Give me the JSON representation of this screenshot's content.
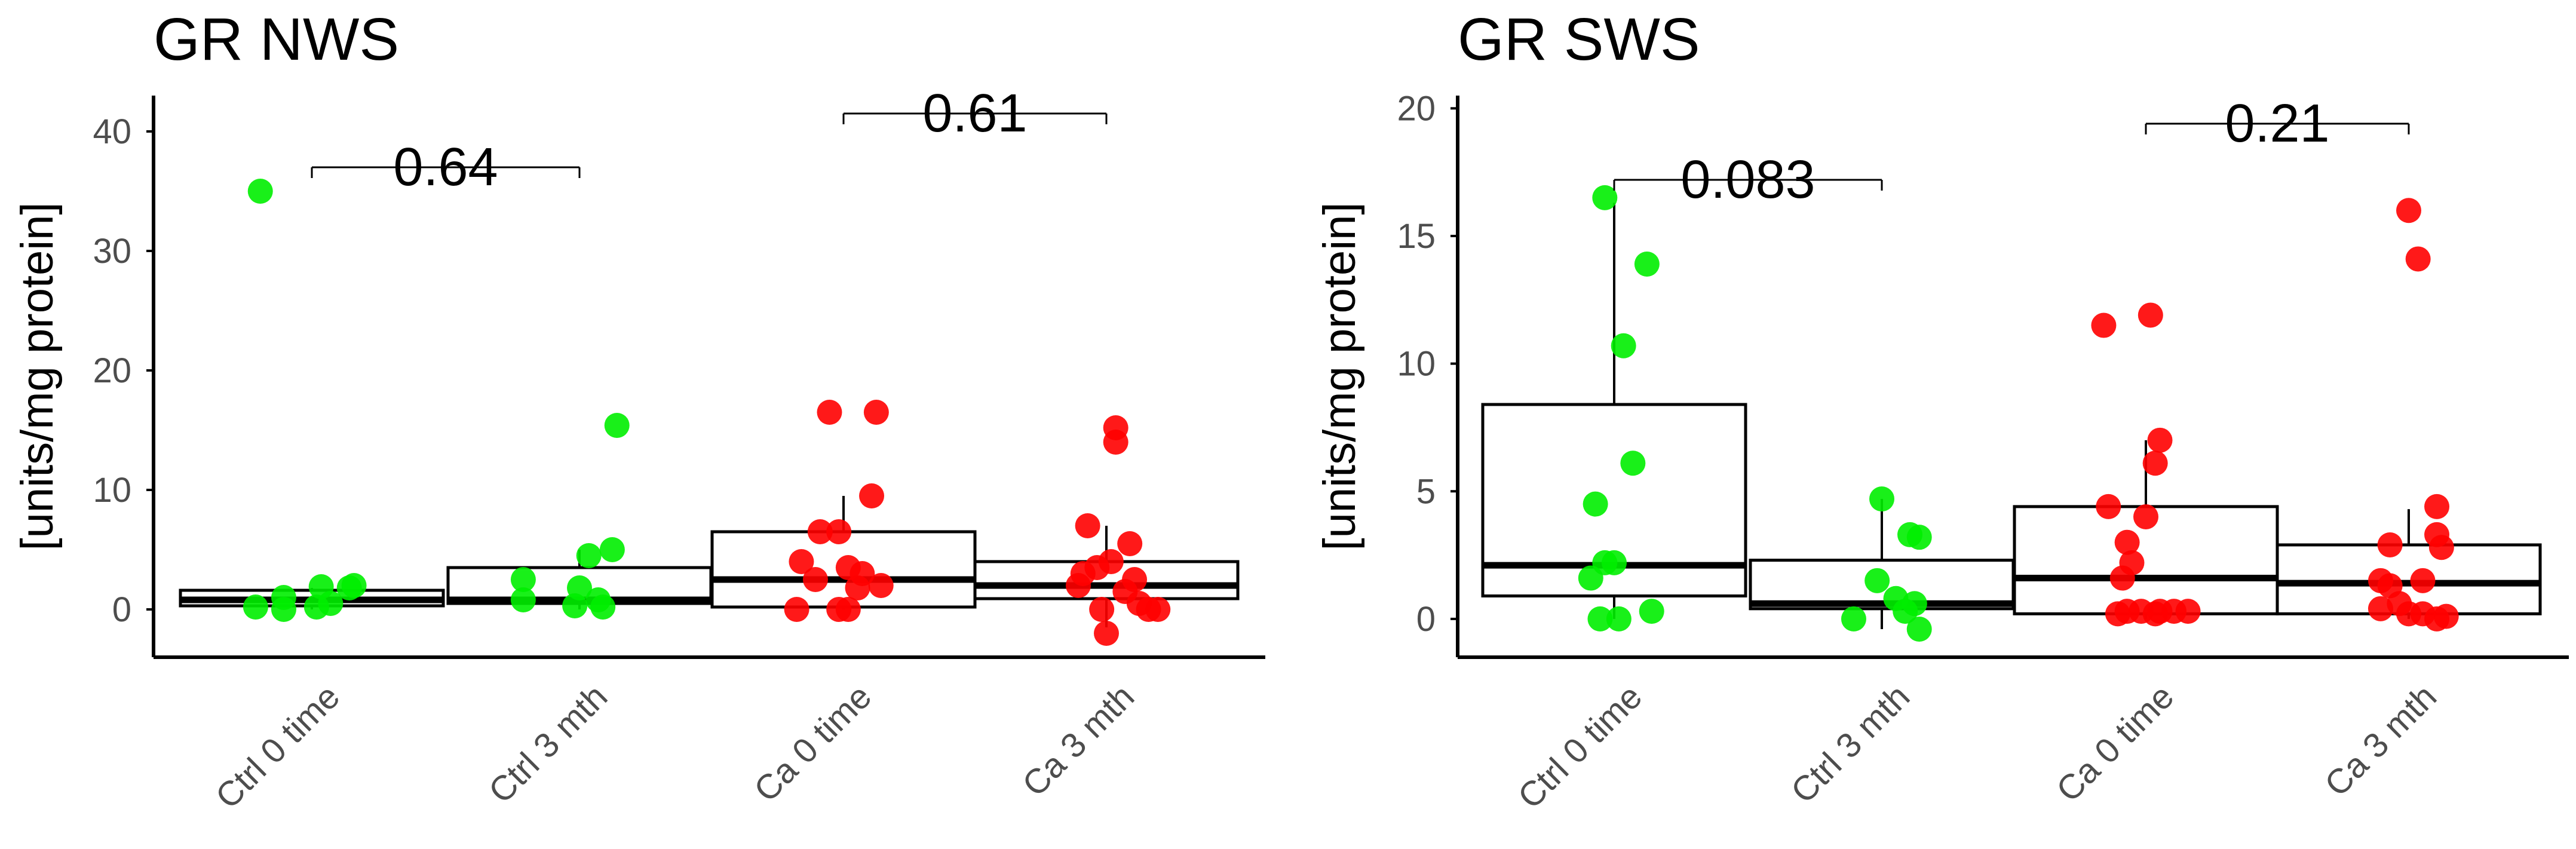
{
  "colors": {
    "ctrl": "#00ee00",
    "ca": "#ff0000",
    "axis": "#000000",
    "tick_text": "#4d4d4d"
  },
  "chart_data": [
    {
      "type": "box",
      "title": "GR NWS",
      "xlabel": "",
      "ylabel": "[units/mg protein]",
      "ylim": [
        -4,
        43
      ],
      "yticks": [
        0,
        10,
        20,
        30,
        40
      ],
      "grid": false,
      "categories": [
        "Ctrl 0 time",
        "Ctrl 3 mth",
        "Ca 0 time",
        "Ca 3 mth"
      ],
      "boxes": [
        {
          "group": "ctrl",
          "q1": 0.3,
          "median": 0.8,
          "q3": 1.6,
          "whisker_low": 0.0,
          "whisker_high": 1.8
        },
        {
          "group": "ctrl",
          "q1": 0.5,
          "median": 0.8,
          "q3": 3.5,
          "whisker_low": 0.0,
          "whisker_high": 5.0
        },
        {
          "group": "ca",
          "q1": 0.2,
          "median": 2.5,
          "q3": 6.5,
          "whisker_low": 0.0,
          "whisker_high": 9.5
        },
        {
          "group": "ca",
          "q1": 0.9,
          "median": 2.0,
          "q3": 4.0,
          "whisker_low": -1.5,
          "whisker_high": 7.0
        }
      ],
      "points": [
        [
          [
            35.0,
            -0.55
          ],
          [
            0.2,
            -0.6
          ],
          [
            0.0,
            -0.3
          ],
          [
            0.2,
            0.05
          ],
          [
            1.0,
            -0.3
          ],
          [
            1.9,
            0.1
          ],
          [
            1.8,
            0.4
          ],
          [
            0.5,
            0.2
          ],
          [
            2.0,
            0.45
          ]
        ],
        [
          [
            15.4,
            0.4
          ],
          [
            2.5,
            -0.6
          ],
          [
            0.8,
            -0.6
          ],
          [
            4.5,
            0.1
          ],
          [
            5.0,
            0.35
          ],
          [
            1.8,
            0.0
          ],
          [
            0.8,
            0.2
          ],
          [
            0.2,
            0.25
          ],
          [
            0.3,
            -0.05
          ]
        ],
        [
          [
            16.5,
            -0.15
          ],
          [
            16.5,
            0.35
          ],
          [
            9.5,
            0.3
          ],
          [
            6.5,
            -0.25
          ],
          [
            6.5,
            -0.05
          ],
          [
            4.0,
            -0.45
          ],
          [
            3.5,
            0.05
          ],
          [
            3.0,
            0.2
          ],
          [
            2.5,
            -0.3
          ],
          [
            2.0,
            0.4
          ],
          [
            1.8,
            0.15
          ],
          [
            0.0,
            -0.5
          ],
          [
            0.0,
            -0.05
          ],
          [
            0.0,
            0.05
          ]
        ],
        [
          [
            15.2,
            0.1
          ],
          [
            14.0,
            0.1
          ],
          [
            7.0,
            -0.2
          ],
          [
            5.5,
            0.25
          ],
          [
            4.0,
            0.05
          ],
          [
            3.5,
            -0.1
          ],
          [
            3.0,
            -0.25
          ],
          [
            2.5,
            0.3
          ],
          [
            2.0,
            -0.3
          ],
          [
            1.5,
            0.2
          ],
          [
            0.0,
            -0.05
          ],
          [
            0.0,
            0.45
          ],
          [
            0.0,
            0.55
          ],
          [
            0.5,
            0.35
          ],
          [
            -2.0,
            0.0
          ]
        ]
      ],
      "comparisons": [
        {
          "from": 0,
          "to": 1,
          "label": "0.64",
          "y": 37.0
        },
        {
          "from": 2,
          "to": 3,
          "label": "0.61",
          "y": 41.5
        }
      ]
    },
    {
      "type": "box",
      "title": "GR SWS",
      "xlabel": "",
      "ylabel": "[units/mg protein]",
      "ylim": [
        -1.5,
        20.5
      ],
      "yticks": [
        0,
        5,
        10,
        15,
        20
      ],
      "grid": false,
      "categories": [
        "Ctrl 0 time",
        "Ctrl 3 mth",
        "Ca 0 time",
        "Ca 3 mth"
      ],
      "boxes": [
        {
          "group": "ctrl",
          "q1": 0.9,
          "median": 2.1,
          "q3": 8.4,
          "whisker_low": 0.0,
          "whisker_high": 16.3
        },
        {
          "group": "ctrl",
          "q1": 0.4,
          "median": 0.6,
          "q3": 2.3,
          "whisker_low": -0.4,
          "whisker_high": 4.7
        },
        {
          "group": "ca",
          "q1": 0.2,
          "median": 1.6,
          "q3": 4.4,
          "whisker_low": 0.0,
          "whisker_high": 7.0
        },
        {
          "group": "ca",
          "q1": 0.2,
          "median": 1.4,
          "q3": 2.9,
          "whisker_low": 0.0,
          "whisker_high": 4.3
        }
      ],
      "points": [
        [
          [
            16.5,
            -0.1
          ],
          [
            13.9,
            0.35
          ],
          [
            10.7,
            0.1
          ],
          [
            6.1,
            0.2
          ],
          [
            4.5,
            -0.2
          ],
          [
            2.2,
            -0.1
          ],
          [
            2.2,
            0.0
          ],
          [
            1.6,
            -0.25
          ],
          [
            0.3,
            0.4
          ],
          [
            0.0,
            -0.15
          ],
          [
            0.0,
            0.05
          ]
        ],
        [
          [
            4.7,
            0.0
          ],
          [
            3.3,
            0.3
          ],
          [
            3.2,
            0.4
          ],
          [
            1.5,
            -0.05
          ],
          [
            0.8,
            0.15
          ],
          [
            0.6,
            0.35
          ],
          [
            0.3,
            0.25
          ],
          [
            0.0,
            -0.3
          ],
          [
            -0.4,
            0.4
          ]
        ],
        [
          [
            11.9,
            0.05
          ],
          [
            11.5,
            -0.45
          ],
          [
            7.0,
            0.15
          ],
          [
            6.1,
            0.1
          ],
          [
            4.4,
            -0.4
          ],
          [
            4.0,
            0.0
          ],
          [
            3.0,
            -0.2
          ],
          [
            2.2,
            -0.15
          ],
          [
            1.6,
            -0.25
          ],
          [
            0.3,
            -0.2
          ],
          [
            0.3,
            -0.05
          ],
          [
            0.3,
            0.15
          ],
          [
            0.3,
            0.3
          ],
          [
            0.3,
            0.45
          ],
          [
            0.2,
            -0.3
          ],
          [
            0.2,
            0.1
          ]
        ],
        [
          [
            16.0,
            0.0
          ],
          [
            14.1,
            0.1
          ],
          [
            4.4,
            0.3
          ],
          [
            3.3,
            0.3
          ],
          [
            2.9,
            -0.2
          ],
          [
            2.8,
            0.35
          ],
          [
            1.5,
            -0.3
          ],
          [
            1.5,
            0.15
          ],
          [
            1.3,
            -0.2
          ],
          [
            0.6,
            -0.1
          ],
          [
            0.4,
            -0.3
          ],
          [
            0.2,
            0.0
          ],
          [
            0.2,
            0.15
          ],
          [
            0.1,
            0.4
          ],
          [
            0.0,
            0.3
          ]
        ]
      ],
      "comparisons": [
        {
          "from": 0,
          "to": 1,
          "label": "0.083",
          "y": 17.2
        },
        {
          "from": 2,
          "to": 3,
          "label": "0.21",
          "y": 19.4
        }
      ]
    }
  ]
}
